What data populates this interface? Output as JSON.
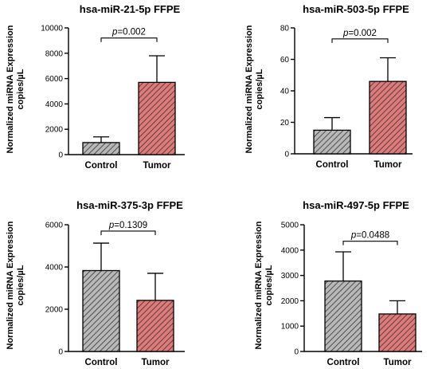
{
  "colors": {
    "control_fill": "#b8b8b8",
    "tumor_fill": "#e07a7a",
    "hatch": "#333333"
  },
  "chart_data": [
    {
      "type": "bar",
      "title": "hsa-miR-21-5p FFPE",
      "ylabel_line1": "Normalized miRNA Expression",
      "ylabel_line2": "copies/µL",
      "categories": [
        "Control",
        "Tumor"
      ],
      "values": [
        950,
        5700
      ],
      "errors": [
        450,
        2100
      ],
      "ylim": [
        0,
        10000
      ],
      "yticks": [
        0,
        2000,
        4000,
        6000,
        8000,
        10000
      ],
      "p_prefix": "p",
      "p_value": "=0.002",
      "bracket_y": 9200
    },
    {
      "type": "bar",
      "title": "hsa-miR-503-5p FFPE",
      "ylabel_line1": "Normalized miRNA Expression",
      "ylabel_line2": "copies/µL",
      "categories": [
        "Control",
        "Tumor"
      ],
      "values": [
        15,
        46
      ],
      "errors": [
        8,
        15
      ],
      "ylim": [
        0,
        80
      ],
      "yticks": [
        0,
        20,
        40,
        60,
        80
      ],
      "p_prefix": "p",
      "p_value": "=0.002",
      "bracket_y": 73
    },
    {
      "type": "bar",
      "title": "hsa-miR-375-3p FFPE",
      "ylabel_line1": "Normalized miRNA Expression",
      "ylabel_line2": "copies/µL",
      "categories": [
        "Control",
        "Tumor"
      ],
      "values": [
        3830,
        2420
      ],
      "errors": [
        1300,
        1280
      ],
      "ylim": [
        0,
        6000
      ],
      "yticks": [
        0,
        2000,
        4000,
        6000
      ],
      "p_prefix": "p",
      "p_value": "=0.1309",
      "bracket_y": 5700
    },
    {
      "type": "bar",
      "title": "hsa-miR-497-5p FFPE",
      "ylabel_line1": "Normalized miRNA Expression",
      "ylabel_line2": "copies/µL",
      "categories": [
        "Control",
        "Tumor"
      ],
      "values": [
        2780,
        1480
      ],
      "errors": [
        1150,
        520
      ],
      "ylim": [
        0,
        5000
      ],
      "yticks": [
        0,
        1000,
        2000,
        3000,
        4000,
        5000
      ],
      "p_prefix": "p",
      "p_value": "=0.0488",
      "bracket_y": 4350
    }
  ]
}
